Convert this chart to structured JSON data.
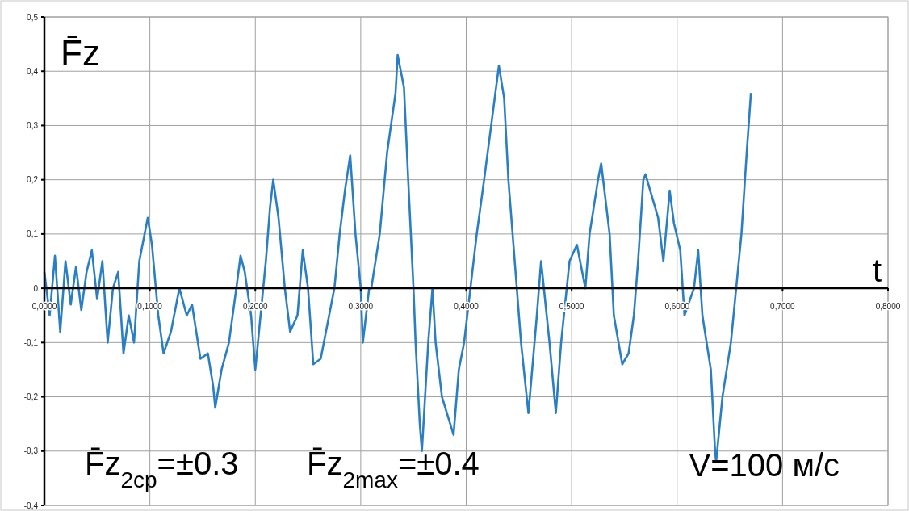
{
  "chart_data": {
    "type": "line",
    "xlabel": "t",
    "ylabel": "F̄z",
    "annotations": [
      "F̄z$_{2ср}$=±0.3",
      "F̄z$_{2max}$=±0.4",
      "V=100 м/с"
    ],
    "xlim": [
      0,
      0.8
    ],
    "ylim": [
      -0.4,
      0.5
    ],
    "xticks": [
      {
        "value": 0,
        "label": "0,0000"
      },
      {
        "value": 0.1,
        "label": "0,1000"
      },
      {
        "value": 0.2,
        "label": "0,2000"
      },
      {
        "value": 0.3,
        "label": "0,3000"
      },
      {
        "value": 0.4,
        "label": "0,4000"
      },
      {
        "value": 0.5,
        "label": "0,5000"
      },
      {
        "value": 0.6,
        "label": "0,6000"
      },
      {
        "value": 0.7,
        "label": "0,7000"
      },
      {
        "value": 0.8,
        "label": "0,8000"
      }
    ],
    "yticks": [
      {
        "value": -0.4,
        "label": "-0,4"
      },
      {
        "value": -0.3,
        "label": "-0,3"
      },
      {
        "value": -0.2,
        "label": "-0,2"
      },
      {
        "value": -0.1,
        "label": "-0,1"
      },
      0,
      {
        "value": 0.1,
        "label": "0,1"
      },
      {
        "value": 0.2,
        "label": "0,2"
      },
      {
        "value": 0.3,
        "label": "0,3"
      },
      {
        "value": 0.4,
        "label": "0,4"
      },
      {
        "value": 0.5,
        "label": "0,5"
      }
    ],
    "grid": true,
    "series": [
      {
        "color": "#2a7fc4",
        "x": [
          0,
          0.005,
          0.01,
          0.015,
          0.02,
          0.025,
          0.03,
          0.035,
          0.04,
          0.045,
          0.05,
          0.055,
          0.06,
          0.065,
          0.07,
          0.075,
          0.08,
          0.085,
          0.09,
          0.095,
          0.098,
          0.102,
          0.108,
          0.113,
          0.12,
          0.128,
          0.135,
          0.14,
          0.148,
          0.155,
          0.16,
          0.162,
          0.168,
          0.175,
          0.182,
          0.186,
          0.19,
          0.196,
          0.2,
          0.205,
          0.21,
          0.214,
          0.217,
          0.222,
          0.228,
          0.233,
          0.24,
          0.245,
          0.25,
          0.255,
          0.262,
          0.27,
          0.275,
          0.28,
          0.285,
          0.29,
          0.295,
          0.3,
          0.302,
          0.308,
          0.31,
          0.318,
          0.325,
          0.333,
          0.335,
          0.341,
          0.345,
          0.35,
          0.352,
          0.356,
          0.358,
          0.364,
          0.368,
          0.371,
          0.377,
          0.388,
          0.393,
          0.398,
          0.404,
          0.41,
          0.417,
          0.427,
          0.431,
          0.436,
          0.44,
          0.446,
          0.452,
          0.459,
          0.467,
          0.471,
          0.479,
          0.485,
          0.49,
          0.498,
          0.505,
          0.513,
          0.517,
          0.525,
          0.528,
          0.536,
          0.54,
          0.548,
          0.554,
          0.559,
          0.563,
          0.568,
          0.57,
          0.582,
          0.587,
          0.593,
          0.597,
          0.603,
          0.607,
          0.616,
          0.62,
          0.624,
          0.632,
          0.636,
          0.637,
          0.643,
          0.651,
          0.656,
          0.661,
          0.666,
          0.67
        ],
        "values": [
          0.03,
          -0.05,
          0.06,
          -0.08,
          0.05,
          -0.03,
          0.04,
          -0.04,
          0.03,
          0.07,
          -0.02,
          0.05,
          -0.1,
          0,
          0.03,
          -0.12,
          -0.05,
          -0.1,
          0.05,
          0.1,
          0.13,
          0.08,
          -0.05,
          -0.12,
          -0.08,
          0,
          -0.05,
          -0.03,
          -0.13,
          -0.12,
          -0.18,
          -0.22,
          -0.15,
          -0.1,
          0,
          0.06,
          0.03,
          -0.05,
          -0.15,
          -0.05,
          0.05,
          0.15,
          0.2,
          0.13,
          0,
          -0.08,
          -0.05,
          0.07,
          0,
          -0.14,
          -0.13,
          -0.05,
          0,
          0.1,
          0.18,
          0.245,
          0.1,
          0,
          -0.1,
          0,
          0,
          0.1,
          0.25,
          0.36,
          0.43,
          0.37,
          0.2,
          0,
          -0.1,
          -0.25,
          -0.3,
          -0.1,
          0,
          -0.1,
          -0.2,
          -0.27,
          -0.15,
          -0.1,
          0,
          0.1,
          0.2,
          0.35,
          0.41,
          0.35,
          0.2,
          0.05,
          -0.1,
          -0.23,
          -0.05,
          0.05,
          -0.1,
          -0.23,
          -0.1,
          0.05,
          0.08,
          0,
          0.1,
          0.2,
          0.23,
          0.1,
          -0.05,
          -0.14,
          -0.12,
          -0.05,
          0.05,
          0.2,
          0.21,
          0.13,
          0.05,
          0.18,
          0.12,
          0.07,
          -0.05,
          0,
          0.07,
          -0.05,
          -0.15,
          -0.3,
          -0.32,
          -0.2,
          -0.1,
          0,
          0.1,
          0.25,
          0.36
        ]
      }
    ]
  }
}
